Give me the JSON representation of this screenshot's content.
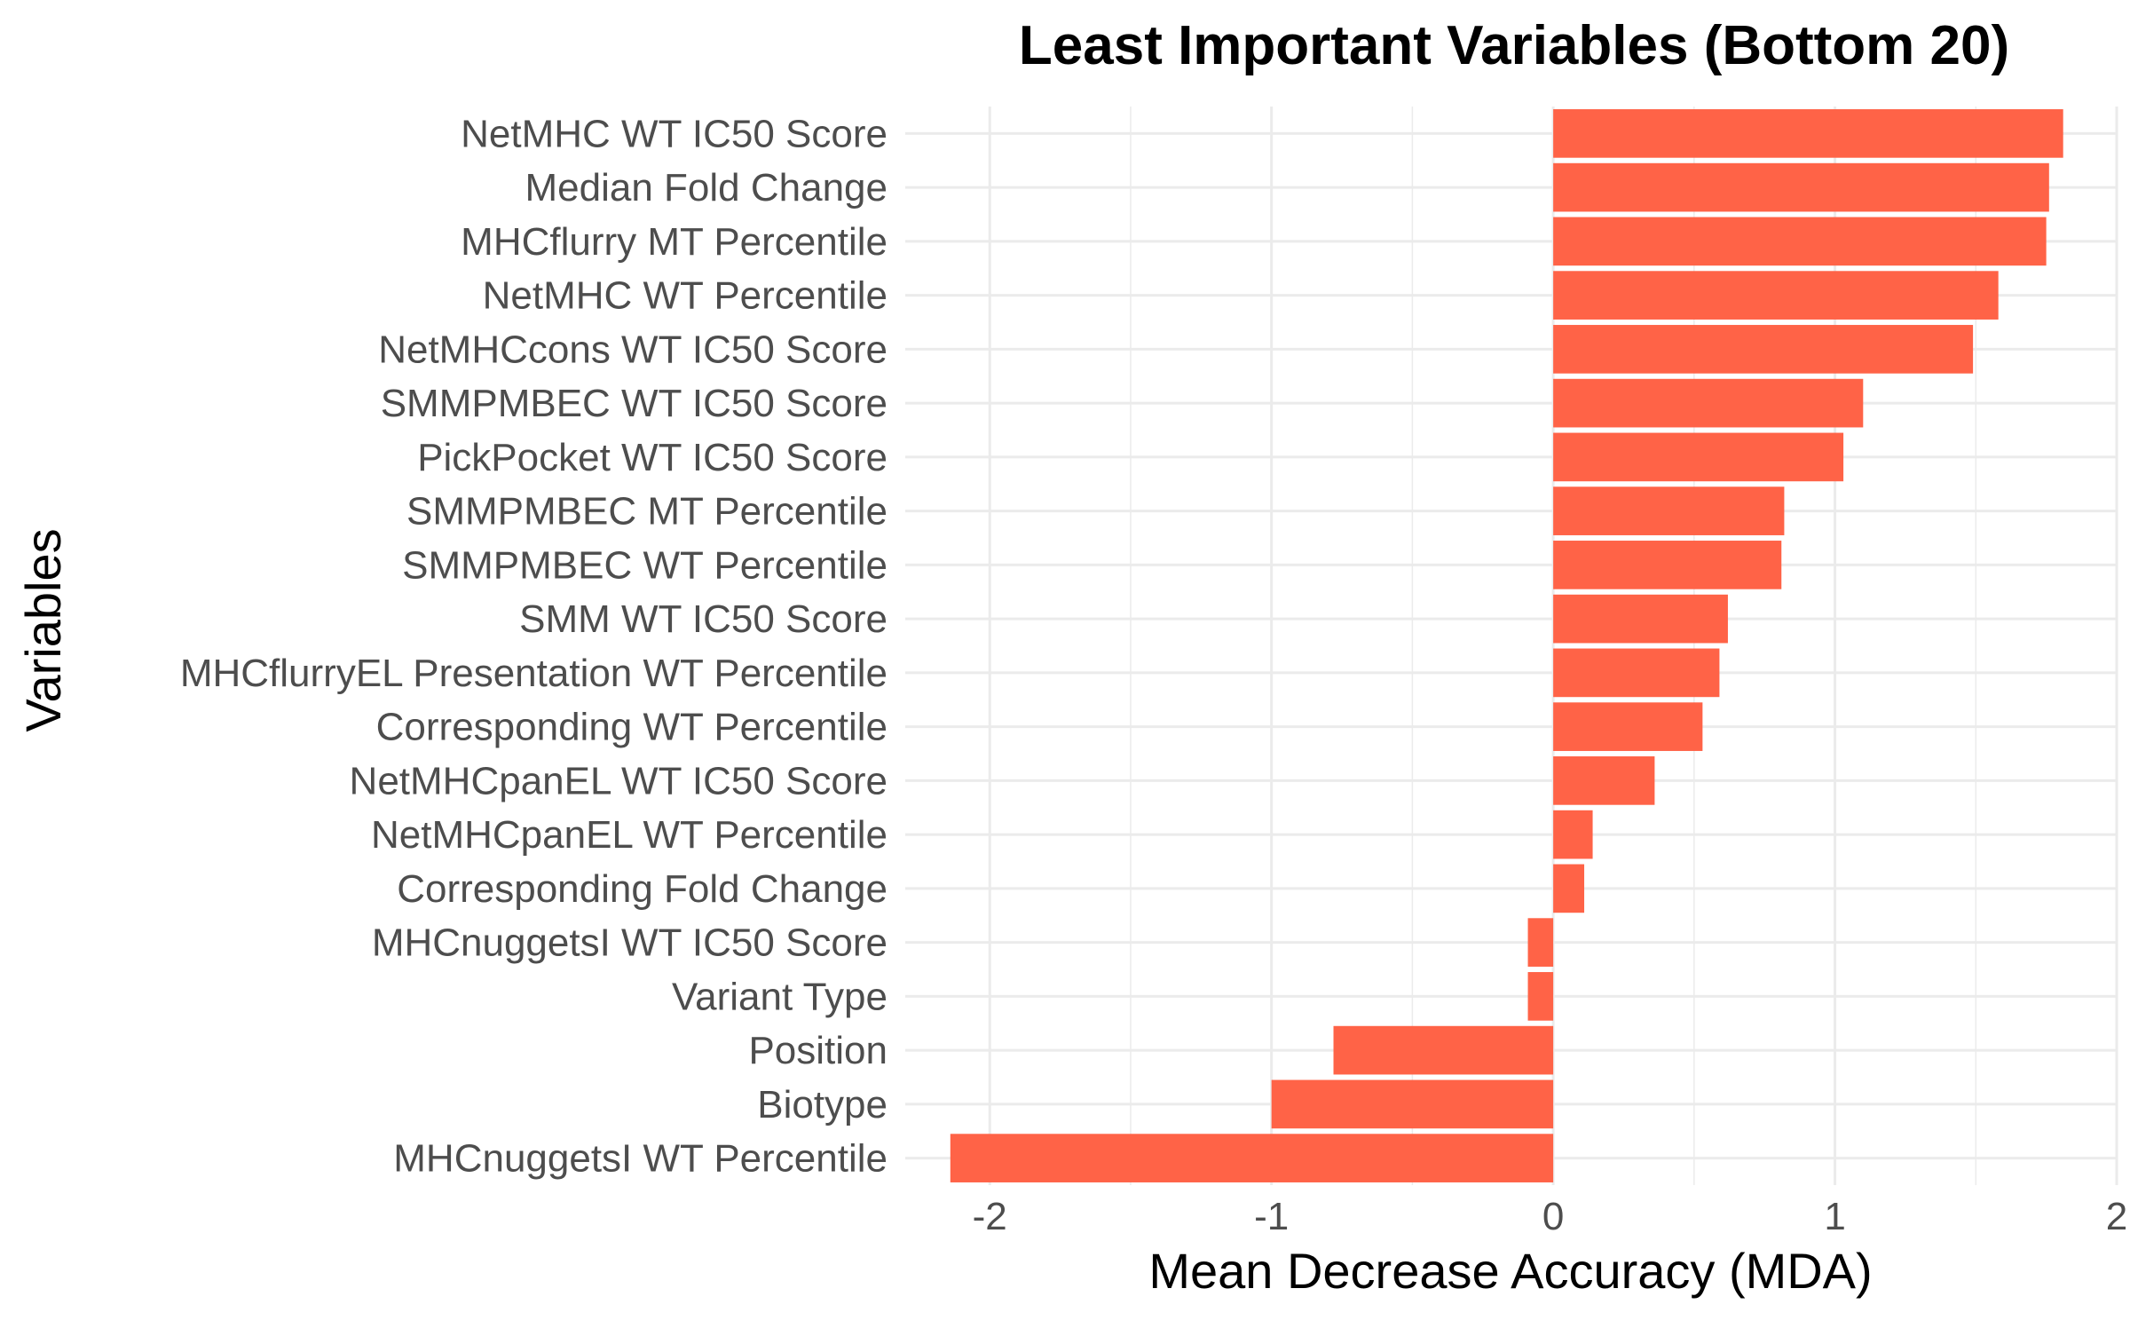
{
  "chart_data": {
    "type": "bar",
    "orientation": "horizontal",
    "title": "Least Important Variables (Bottom 20)",
    "xlabel": "Mean Decrease Accuracy (MDA)",
    "ylabel": "Variables",
    "xlim": [
      -2.3,
      2.0
    ],
    "xticks": [
      -2,
      -1,
      0,
      1,
      2
    ],
    "xtick_labels": [
      "-2",
      "-1",
      "0",
      "1",
      "2"
    ],
    "grid": true,
    "bar_color": "#FF6347",
    "categories": [
      "NetMHC WT IC50 Score",
      "Median Fold Change",
      "MHCflurry MT Percentile",
      "NetMHC WT Percentile",
      "NetMHCcons WT IC50 Score",
      "SMMPMBEC WT IC50 Score",
      "PickPocket WT IC50 Score",
      "SMMPMBEC MT Percentile",
      "SMMPMBEC WT Percentile",
      "SMM WT IC50 Score",
      "MHCflurryEL Presentation WT Percentile",
      "Corresponding WT Percentile",
      "NetMHCpanEL WT IC50 Score",
      "NetMHCpanEL WT Percentile",
      "Corresponding Fold Change",
      "MHCnuggetsI WT IC50 Score",
      "Variant Type",
      "Position",
      "Biotype",
      "MHCnuggetsI WT Percentile"
    ],
    "values": [
      1.81,
      1.76,
      1.75,
      1.58,
      1.49,
      1.1,
      1.03,
      0.82,
      0.81,
      0.62,
      0.59,
      0.53,
      0.36,
      0.14,
      0.11,
      -0.09,
      -0.09,
      -0.78,
      -1.0,
      -2.14
    ]
  }
}
